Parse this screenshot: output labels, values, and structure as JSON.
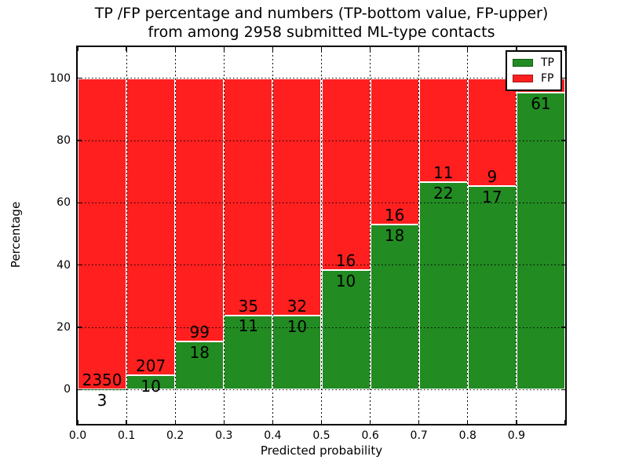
{
  "title": {
    "line1": "TP /FP percentage and numbers (TP-bottom value, FP-upper)",
    "line2": "from among 2958 submitted ML-type contacts"
  },
  "axes": {
    "xlabel": "Predicted probability",
    "ylabel": "Percentage",
    "ylim": [
      -11,
      110
    ],
    "xlim": [
      0.0,
      1.0
    ],
    "y_ticks": [
      0,
      20,
      40,
      60,
      80,
      100
    ],
    "y_tick_labels": [
      "0",
      "20",
      "40",
      "60",
      "80",
      "100"
    ],
    "x_ticks": [
      0.0,
      0.1,
      0.2,
      0.3,
      0.4,
      0.5,
      0.6,
      0.7,
      0.8,
      0.9
    ],
    "x_tick_labels": [
      "0.0",
      "0.1",
      "0.2",
      "0.3",
      "0.4",
      "0.5",
      "0.6",
      "0.7",
      "0.8",
      "0.9"
    ],
    "grid": "dotted"
  },
  "legend": {
    "position": "upper right",
    "items": [
      {
        "label": "TP",
        "color": "#228b22"
      },
      {
        "label": "FP",
        "color": "#ff1f1f"
      }
    ]
  },
  "colors": {
    "tp_green": "#228b22",
    "fp_red": "#ff1f1f",
    "axis_black": "#000000",
    "background": "#ffffff"
  },
  "chart_data": {
    "type": "bar",
    "stacked": true,
    "orientation": "vertical",
    "title": "TP /FP percentage and numbers (TP-bottom value, FP-upper) from among 2958 submitted ML-type contacts",
    "xlabel": "Predicted probability",
    "ylabel": "Percentage",
    "total_contacts": 2958,
    "bin_width": 0.1,
    "categories": [
      "0.0-0.1",
      "0.1-0.2",
      "0.2-0.3",
      "0.3-0.4",
      "0.4-0.5",
      "0.5-0.6",
      "0.6-0.7",
      "0.7-0.8",
      "0.8-0.9",
      "0.9-1.0"
    ],
    "series": [
      {
        "name": "TP",
        "color": "#228b22",
        "counts": [
          3,
          10,
          18,
          11,
          10,
          10,
          18,
          22,
          17,
          61
        ],
        "percent": [
          0.13,
          4.61,
          15.38,
          23.91,
          23.81,
          38.46,
          52.94,
          66.67,
          65.38,
          95.31
        ]
      },
      {
        "name": "FP",
        "color": "#ff1f1f",
        "counts": [
          2350,
          207,
          99,
          35,
          32,
          16,
          16,
          11,
          9,
          null
        ],
        "percent": [
          99.87,
          95.39,
          84.62,
          76.09,
          76.19,
          61.54,
          47.06,
          33.33,
          34.62,
          4.69
        ]
      }
    ],
    "ylim": [
      -11,
      110
    ],
    "grid": "dotted black, drawn above bars",
    "legend_position": "upper right"
  }
}
